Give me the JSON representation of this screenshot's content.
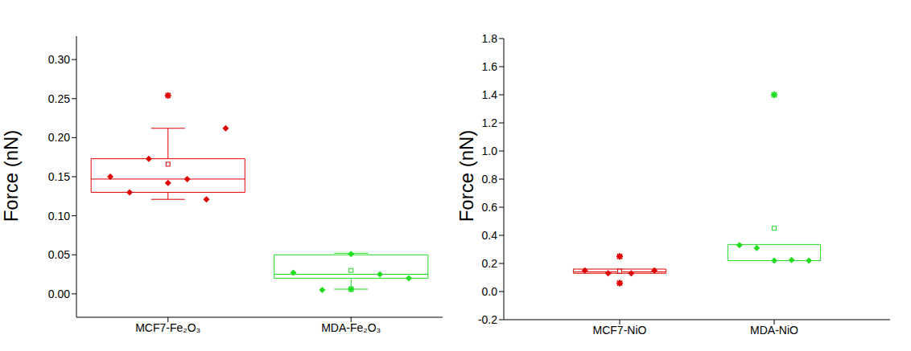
{
  "chart_data": [
    {
      "type": "box",
      "ylabel": "Force (nN)",
      "ylim": [
        -0.03,
        0.33
      ],
      "yticks": [
        {
          "value": 0,
          "label": "0.00"
        },
        0.05,
        {
          "value": 0.1,
          "label": "0.10"
        },
        0.15,
        {
          "value": 0.2,
          "label": "0.20"
        },
        0.25,
        {
          "value": 0.3,
          "label": "0.30"
        }
      ],
      "grid": false,
      "marker": "diamond",
      "categories": [
        "MCF7-Fe₂O₃",
        "MDA-Fe₂O₃"
      ],
      "boxes": [
        {
          "color": "#e00000",
          "q1": 0.13,
          "median": 0.147,
          "q3": 0.173,
          "mean": 0.166,
          "whisker_low": 0.121,
          "whisker_high": 0.212,
          "points": [
            0.15,
            0.13,
            0.173,
            0.142,
            0.147,
            0.121,
            0.212
          ],
          "outliers": [
            0.254
          ]
        },
        {
          "color": "#22dd22",
          "q1": 0.02,
          "median": 0.025,
          "q3": 0.05,
          "mean": 0.03,
          "whisker_low": 0.006,
          "whisker_high": 0.052,
          "points": [
            0.027,
            0.005,
            0.051,
            0.025,
            0.02
          ],
          "outliers": [
            0.006
          ]
        }
      ]
    },
    {
      "type": "box",
      "ylabel": "Force (nN)",
      "ylim": [
        -0.2,
        1.8
      ],
      "yticks": [
        -0.2,
        {
          "value": 0,
          "label": "0.0"
        },
        0.2,
        0.4,
        0.6,
        0.8,
        {
          "value": 1,
          "label": "1.0"
        },
        1.2,
        1.4,
        1.6,
        1.8
      ],
      "grid": false,
      "marker": "diamond",
      "categories": [
        "MCF7-NiO",
        "MDA-NiO"
      ],
      "boxes": [
        {
          "color": "#e00000",
          "q1": 0.13,
          "median": 0.14,
          "q3": 0.16,
          "mean": 0.145,
          "points": [
            0.15,
            0.13,
            0.13,
            0.15
          ],
          "outliers": [
            0.25,
            0.06
          ]
        },
        {
          "color": "#22dd22",
          "q1": 0.22,
          "median": 0.22,
          "q3": 0.335,
          "mean": 0.45,
          "points": [
            0.33,
            0.31,
            0.22,
            0.225,
            0.22
          ],
          "outliers": [
            1.4
          ]
        }
      ]
    }
  ]
}
